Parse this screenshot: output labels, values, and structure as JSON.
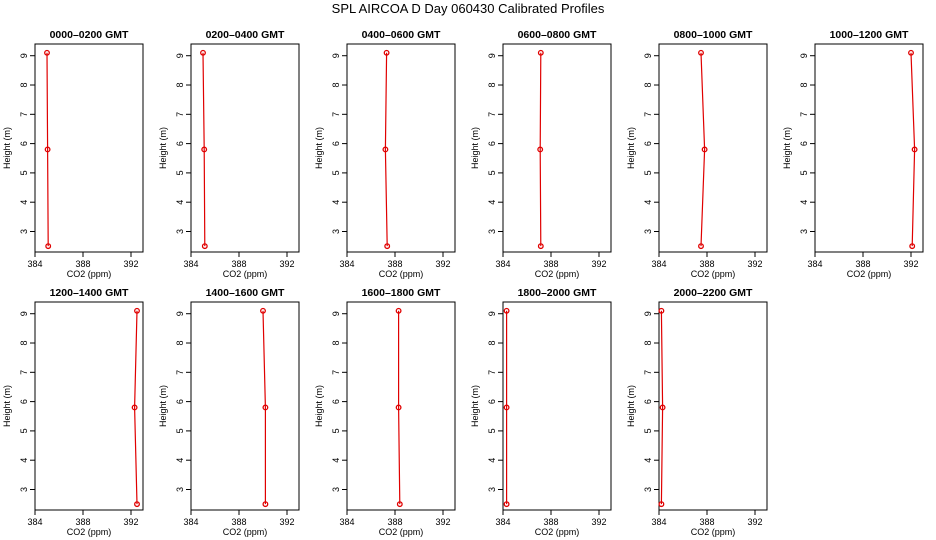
{
  "title": "SPL AIRCOA D  Day 060430  Calibrated Profiles",
  "colors": {
    "profile": "#e00000",
    "axis": "#000000"
  },
  "chart_data": [
    {
      "type": "line",
      "title": "0000–0200 GMT",
      "xlabel": "CO2 (ppm)",
      "ylabel": "Height (m)",
      "xlim": [
        384,
        393
      ],
      "ylim": [
        2.3,
        9.4
      ],
      "xticks": [
        384,
        388,
        392
      ],
      "yticks": [
        3,
        4,
        5,
        6,
        7,
        8,
        9
      ],
      "series": [
        {
          "points": [
            {
              "x": 385.0,
              "y": 9.1
            },
            {
              "x": 385.05,
              "y": 5.8
            },
            {
              "x": 385.1,
              "y": 2.5
            }
          ]
        }
      ]
    },
    {
      "type": "line",
      "title": "0200–0400 GMT",
      "xlabel": "CO2 (ppm)",
      "ylabel": "Height (m)",
      "xlim": [
        384,
        393
      ],
      "ylim": [
        2.3,
        9.4
      ],
      "xticks": [
        384,
        388,
        392
      ],
      "yticks": [
        3,
        4,
        5,
        6,
        7,
        8,
        9
      ],
      "series": [
        {
          "points": [
            {
              "x": 385.0,
              "y": 9.1
            },
            {
              "x": 385.1,
              "y": 5.8
            },
            {
              "x": 385.15,
              "y": 2.5
            }
          ]
        }
      ]
    },
    {
      "type": "line",
      "title": "0400–0600 GMT",
      "xlabel": "CO2 (ppm)",
      "ylabel": "Height (m)",
      "xlim": [
        384,
        393
      ],
      "ylim": [
        2.3,
        9.4
      ],
      "xticks": [
        384,
        388,
        392
      ],
      "yticks": [
        3,
        4,
        5,
        6,
        7,
        8,
        9
      ],
      "series": [
        {
          "points": [
            {
              "x": 387.3,
              "y": 9.1
            },
            {
              "x": 387.2,
              "y": 5.8
            },
            {
              "x": 387.35,
              "y": 2.5
            }
          ]
        }
      ]
    },
    {
      "type": "line",
      "title": "0600–0800 GMT",
      "xlabel": "CO2 (ppm)",
      "ylabel": "Height (m)",
      "xlim": [
        384,
        393
      ],
      "ylim": [
        2.3,
        9.4
      ],
      "xticks": [
        384,
        388,
        392
      ],
      "yticks": [
        3,
        4,
        5,
        6,
        7,
        8,
        9
      ],
      "series": [
        {
          "points": [
            {
              "x": 387.15,
              "y": 9.1
            },
            {
              "x": 387.1,
              "y": 5.8
            },
            {
              "x": 387.15,
              "y": 2.5
            }
          ]
        }
      ]
    },
    {
      "type": "line",
      "title": "0800–1000 GMT",
      "xlabel": "CO2 (ppm)",
      "ylabel": "Height (m)",
      "xlim": [
        384,
        393
      ],
      "ylim": [
        2.3,
        9.4
      ],
      "xticks": [
        384,
        388,
        392
      ],
      "yticks": [
        3,
        4,
        5,
        6,
        7,
        8,
        9
      ],
      "series": [
        {
          "points": [
            {
              "x": 387.5,
              "y": 9.1
            },
            {
              "x": 387.8,
              "y": 5.8
            },
            {
              "x": 387.5,
              "y": 2.5
            }
          ]
        }
      ]
    },
    {
      "type": "line",
      "title": "1000–1200 GMT",
      "xlabel": "CO2 (ppm)",
      "ylabel": "Height (m)",
      "xlim": [
        384,
        393
      ],
      "ylim": [
        2.3,
        9.4
      ],
      "xticks": [
        384,
        388,
        392
      ],
      "yticks": [
        3,
        4,
        5,
        6,
        7,
        8,
        9
      ],
      "series": [
        {
          "points": [
            {
              "x": 392.0,
              "y": 9.1
            },
            {
              "x": 392.3,
              "y": 5.8
            },
            {
              "x": 392.1,
              "y": 2.5
            }
          ]
        }
      ]
    },
    {
      "type": "line",
      "title": "1200–1400 GMT",
      "xlabel": "CO2 (ppm)",
      "ylabel": "Height (m)",
      "xlim": [
        384,
        393
      ],
      "ylim": [
        2.3,
        9.4
      ],
      "xticks": [
        384,
        388,
        392
      ],
      "yticks": [
        3,
        4,
        5,
        6,
        7,
        8,
        9
      ],
      "series": [
        {
          "points": [
            {
              "x": 392.5,
              "y": 9.1
            },
            {
              "x": 392.3,
              "y": 5.8
            },
            {
              "x": 392.5,
              "y": 2.5
            }
          ]
        }
      ]
    },
    {
      "type": "line",
      "title": "1400–1600 GMT",
      "xlabel": "CO2 (ppm)",
      "ylabel": "Height (m)",
      "xlim": [
        384,
        393
      ],
      "ylim": [
        2.3,
        9.4
      ],
      "xticks": [
        384,
        388,
        392
      ],
      "yticks": [
        3,
        4,
        5,
        6,
        7,
        8,
        9
      ],
      "series": [
        {
          "points": [
            {
              "x": 390.0,
              "y": 9.1
            },
            {
              "x": 390.2,
              "y": 5.8
            },
            {
              "x": 390.2,
              "y": 2.5
            }
          ]
        }
      ]
    },
    {
      "type": "line",
      "title": "1600–1800 GMT",
      "xlabel": "CO2 (ppm)",
      "ylabel": "Height (m)",
      "xlim": [
        384,
        393
      ],
      "ylim": [
        2.3,
        9.4
      ],
      "xticks": [
        384,
        388,
        392
      ],
      "yticks": [
        3,
        4,
        5,
        6,
        7,
        8,
        9
      ],
      "series": [
        {
          "points": [
            {
              "x": 388.3,
              "y": 9.1
            },
            {
              "x": 388.3,
              "y": 5.8
            },
            {
              "x": 388.4,
              "y": 2.5
            }
          ]
        }
      ]
    },
    {
      "type": "line",
      "title": "1800–2000 GMT",
      "xlabel": "CO2 (ppm)",
      "ylabel": "Height (m)",
      "xlim": [
        384,
        393
      ],
      "ylim": [
        2.3,
        9.4
      ],
      "xticks": [
        384,
        388,
        392
      ],
      "yticks": [
        3,
        4,
        5,
        6,
        7,
        8,
        9
      ],
      "series": [
        {
          "points": [
            {
              "x": 384.3,
              "y": 9.1
            },
            {
              "x": 384.3,
              "y": 5.8
            },
            {
              "x": 384.3,
              "y": 2.5
            }
          ]
        }
      ]
    },
    {
      "type": "line",
      "title": "2000–2200 GMT",
      "xlabel": "CO2 (ppm)",
      "ylabel": "Height (m)",
      "xlim": [
        384,
        393
      ],
      "ylim": [
        2.3,
        9.4
      ],
      "xticks": [
        384,
        388,
        392
      ],
      "yticks": [
        3,
        4,
        5,
        6,
        7,
        8,
        9
      ],
      "series": [
        {
          "points": [
            {
              "x": 384.2,
              "y": 9.1
            },
            {
              "x": 384.3,
              "y": 5.8
            },
            {
              "x": 384.2,
              "y": 2.5
            }
          ]
        }
      ]
    }
  ]
}
